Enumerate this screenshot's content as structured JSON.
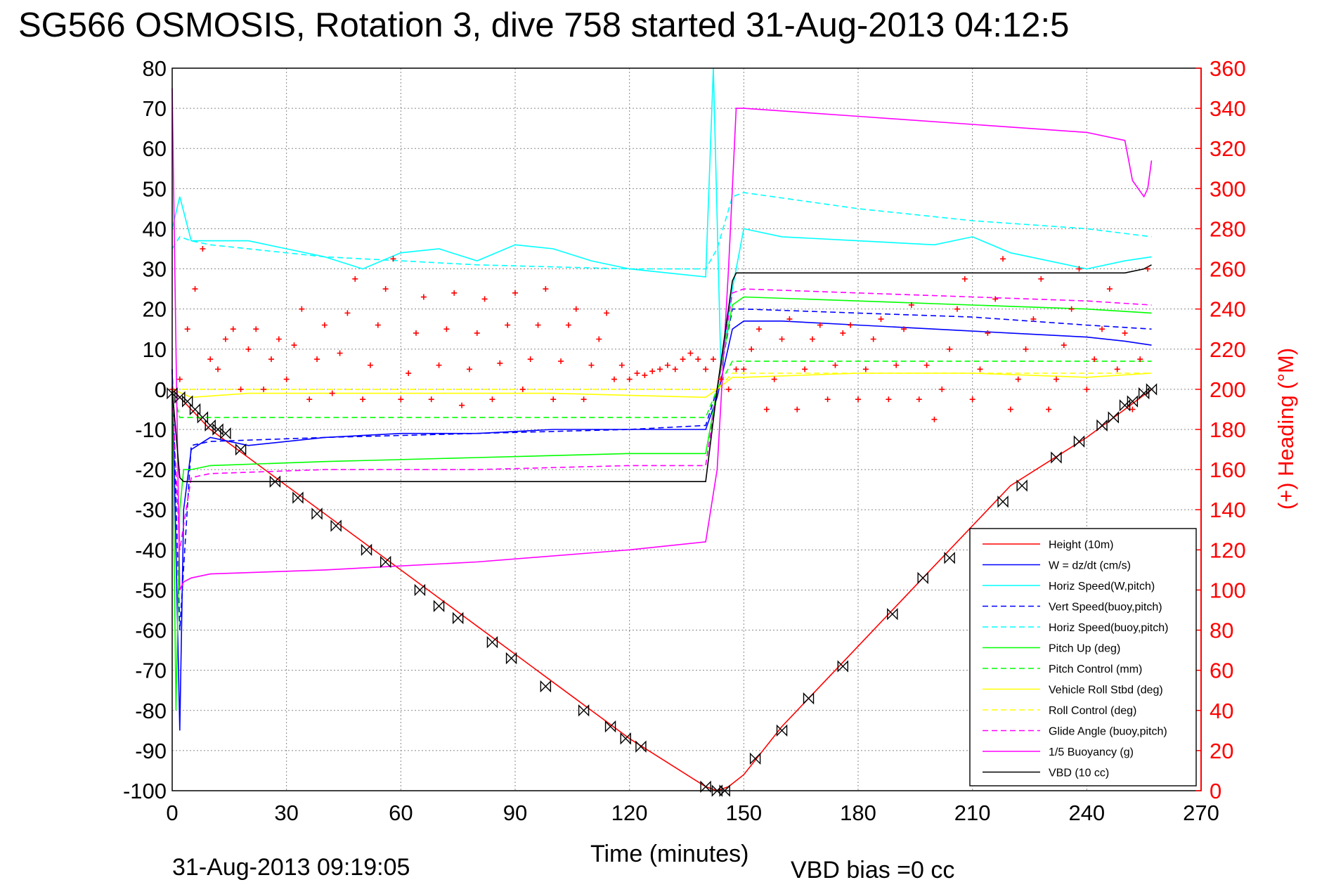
{
  "title": "SG566 OSMOSIS, Rotation 3, dive 758 started 31-Aug-2013 04:12:5",
  "footer": {
    "timestamp": "31-Aug-2013 09:19:05",
    "vbd_bias": "VBD bias =0 cc"
  },
  "colors": {
    "height": "#ff0000",
    "w": "#0000ff",
    "horiz_speed": "#00ffff",
    "pitch": "#00ff00",
    "roll": "#ffff00",
    "glide": "#ff00ff",
    "buoyancy": "#ff00ff",
    "vbd": "#000000",
    "heading": "#ff0000",
    "markers": "#000000"
  },
  "chart_data": {
    "type": "line",
    "xlabel": "Time (minutes)",
    "ylabel_right": "(+) Heading (°M)",
    "xlim": [
      0,
      270
    ],
    "ylim": [
      -100,
      80
    ],
    "ylim_right": [
      0,
      360
    ],
    "xticks": [
      0,
      30,
      60,
      90,
      120,
      150,
      180,
      210,
      240,
      270
    ],
    "yticks": [
      80,
      70,
      60,
      50,
      40,
      30,
      20,
      10,
      0,
      -10,
      -20,
      -30,
      -40,
      -50,
      -60,
      -70,
      -80,
      -90,
      -100
    ],
    "yticks_right": [
      360,
      340,
      320,
      300,
      280,
      260,
      240,
      220,
      200,
      180,
      160,
      140,
      120,
      100,
      80,
      60,
      40,
      20,
      0
    ],
    "grid": true,
    "legend_position": "bottom-right",
    "series": [
      {
        "name": "Height (10m)",
        "key": "height",
        "style": "solid",
        "x": [
          0,
          2,
          5,
          10,
          20,
          40,
          60,
          80,
          100,
          120,
          140,
          143,
          146,
          150,
          160,
          180,
          200,
          220,
          240,
          250,
          257
        ],
        "y": [
          0,
          -2,
          -5,
          -10,
          -17,
          -31,
          -45,
          -59,
          -73,
          -87,
          -99,
          -100,
          -99,
          -96,
          -84,
          -64,
          -44,
          -24,
          -12,
          -5,
          0
        ]
      },
      {
        "name": "W = dz/dt (cm/s)",
        "key": "w",
        "style": "solid",
        "x": [
          0,
          1,
          2,
          3,
          5,
          10,
          20,
          40,
          60,
          80,
          100,
          120,
          140,
          143,
          147,
          150,
          160,
          180,
          200,
          220,
          240,
          250,
          257
        ],
        "y": [
          5,
          -40,
          -85,
          -30,
          -15,
          -12,
          -14,
          -12,
          -11,
          -11,
          -10,
          -10,
          -10,
          -2,
          15,
          17,
          17,
          16,
          15,
          14,
          13,
          12,
          11
        ]
      },
      {
        "name": "Horiz Speed(W,pitch)",
        "key": "horiz_speed",
        "style": "solid",
        "x": [
          0,
          2,
          5,
          10,
          20,
          30,
          40,
          50,
          60,
          70,
          80,
          90,
          100,
          110,
          120,
          130,
          140,
          142,
          144,
          147,
          150,
          160,
          180,
          200,
          210,
          220,
          240,
          250,
          257
        ],
        "y": [
          40,
          48,
          37,
          37,
          37,
          35,
          33,
          30,
          34,
          35,
          32,
          36,
          35,
          32,
          30,
          29,
          28,
          80,
          5,
          25,
          40,
          38,
          37,
          36,
          38,
          34,
          30,
          32,
          33
        ]
      },
      {
        "name": "Vert Speed(buoy,pitch)",
        "key": "vert_speed",
        "style": "dashed",
        "x": [
          0,
          2,
          5,
          10,
          40,
          80,
          120,
          140,
          143,
          147,
          150,
          180,
          210,
          240,
          257
        ],
        "y": [
          5,
          -60,
          -14,
          -13,
          -12,
          -11,
          -10,
          -9,
          0,
          20,
          20,
          19,
          18,
          16,
          15
        ]
      },
      {
        "name": "Horiz Speed(buoy,pitch)",
        "key": "horiz_speed_buoy",
        "style": "dashed",
        "x": [
          0,
          2,
          5,
          10,
          40,
          80,
          120,
          140,
          143,
          147,
          150,
          180,
          210,
          240,
          257
        ],
        "y": [
          35,
          38,
          37,
          36,
          33,
          31,
          30,
          30,
          35,
          48,
          49,
          45,
          42,
          40,
          38
        ]
      },
      {
        "name": "Pitch Up (deg)",
        "key": "pitch",
        "style": "solid",
        "x": [
          0,
          1,
          2,
          3,
          5,
          10,
          40,
          80,
          120,
          140,
          143,
          147,
          150,
          180,
          210,
          240,
          257
        ],
        "y": [
          0,
          -80,
          -30,
          -20,
          -20,
          -19,
          -18,
          -17,
          -16,
          -16,
          0,
          21,
          23,
          22,
          21,
          20,
          19
        ]
      },
      {
        "name": "Pitch Control (mm)",
        "key": "pitch_control",
        "style": "dashed",
        "x": [
          0,
          2,
          5,
          140,
          143,
          147,
          257
        ],
        "y": [
          0,
          -7,
          -7,
          -7,
          0,
          7,
          7
        ]
      },
      {
        "name": "Vehicle Roll Stbd (deg)",
        "key": "roll",
        "style": "solid",
        "x": [
          0,
          5,
          20,
          60,
          100,
          140,
          143,
          147,
          150,
          180,
          210,
          240,
          257
        ],
        "y": [
          0,
          -2,
          -1,
          -1,
          -1,
          -2,
          0,
          3,
          3,
          4,
          4,
          3,
          4
        ]
      },
      {
        "name": "Roll Control (deg)",
        "key": "roll_control",
        "style": "dashed",
        "x": [
          0,
          5,
          140,
          143,
          147,
          257
        ],
        "y": [
          0,
          0,
          0,
          0,
          4,
          4
        ]
      },
      {
        "name": "Glide Angle (buoy,pitch)",
        "key": "glide",
        "style": "dashed",
        "x": [
          0,
          2,
          5,
          10,
          40,
          80,
          120,
          140,
          143,
          147,
          150,
          180,
          210,
          240,
          257
        ],
        "y": [
          0,
          -40,
          -22,
          -21,
          -20,
          -20,
          -19,
          -19,
          0,
          24,
          25,
          24,
          23,
          22,
          21
        ]
      },
      {
        "name": "1/5 Buoyancy (g)",
        "key": "buoyancy",
        "style": "solid",
        "x": [
          0,
          1,
          2,
          3,
          5,
          10,
          40,
          80,
          120,
          140,
          143,
          146,
          148,
          150,
          180,
          210,
          240,
          250,
          252,
          255,
          256,
          257
        ],
        "y": [
          75,
          10,
          -50,
          -48,
          -47,
          -46,
          -45,
          -43,
          -40,
          -38,
          -20,
          30,
          70,
          70,
          68,
          66,
          64,
          62,
          52,
          48,
          50,
          57
        ]
      },
      {
        "name": "VBD (10 cc)",
        "key": "vbd",
        "style": "solid",
        "x": [
          0,
          2,
          3,
          140,
          143,
          147,
          148,
          150,
          200,
          250,
          255,
          257
        ],
        "y": [
          0,
          -22,
          -23,
          -23,
          0,
          27,
          29,
          29,
          29,
          29,
          30,
          31
        ]
      }
    ],
    "heading_series": {
      "name": "(+) Heading (°M)",
      "axis": "right",
      "x": [
        0,
        2,
        4,
        6,
        8,
        10,
        12,
        14,
        16,
        18,
        20,
        22,
        24,
        26,
        28,
        30,
        32,
        34,
        36,
        38,
        40,
        42,
        44,
        46,
        48,
        50,
        52,
        54,
        56,
        58,
        60,
        62,
        64,
        66,
        68,
        70,
        72,
        74,
        76,
        78,
        80,
        82,
        84,
        86,
        88,
        90,
        92,
        94,
        96,
        98,
        100,
        102,
        104,
        106,
        108,
        110,
        112,
        114,
        116,
        118,
        120,
        122,
        124,
        126,
        128,
        130,
        132,
        134,
        136,
        138,
        140,
        142,
        144,
        146,
        148,
        150,
        152,
        154,
        156,
        158,
        160,
        162,
        164,
        166,
        168,
        170,
        172,
        174,
        176,
        178,
        180,
        182,
        184,
        186,
        188,
        190,
        192,
        194,
        196,
        198,
        200,
        202,
        204,
        206,
        208,
        210,
        212,
        214,
        216,
        218,
        220,
        222,
        224,
        226,
        228,
        230,
        232,
        234,
        236,
        238,
        240,
        242,
        244,
        246,
        248,
        250,
        252,
        254,
        256
      ],
      "y": [
        200,
        205,
        230,
        250,
        270,
        215,
        210,
        225,
        230,
        200,
        220,
        230,
        200,
        215,
        225,
        205,
        222,
        240,
        195,
        215,
        232,
        198,
        218,
        238,
        255,
        195,
        212,
        232,
        250,
        265,
        195,
        208,
        228,
        246,
        195,
        212,
        230,
        248,
        192,
        210,
        228,
        245,
        195,
        213,
        232,
        248,
        200,
        215,
        232,
        250,
        195,
        214,
        232,
        240,
        195,
        212,
        225,
        238,
        205,
        212,
        205,
        208,
        207,
        209,
        210,
        212,
        210,
        215,
        218,
        215,
        210,
        215,
        205,
        200,
        210,
        210,
        220,
        230,
        190,
        205,
        225,
        235,
        190,
        210,
        225,
        232,
        195,
        212,
        228,
        232,
        195,
        210,
        225,
        235,
        195,
        212,
        230,
        242,
        195,
        212,
        185,
        200,
        220,
        240,
        255,
        195,
        210,
        228,
        245,
        265,
        190,
        205,
        220,
        235,
        255,
        190,
        205,
        222,
        240,
        260,
        200,
        215,
        230,
        250,
        210,
        228,
        190,
        215,
        260
      ]
    },
    "marker_series": {
      "name": "markers",
      "x": [
        0,
        2,
        4,
        6,
        8,
        10,
        12,
        14,
        18,
        27,
        33,
        38,
        43,
        51,
        56,
        65,
        70,
        75,
        84,
        89,
        98,
        108,
        115,
        119,
        123,
        140,
        143,
        145,
        153,
        160,
        167,
        176,
        189,
        197,
        204,
        218,
        223,
        232,
        238,
        244,
        247,
        250,
        252,
        255,
        257
      ],
      "y": [
        -1,
        -2,
        -3,
        -5,
        -7,
        -9,
        -10,
        -11,
        -15,
        -23,
        -27,
        -31,
        -34,
        -40,
        -43,
        -50,
        -54,
        -57,
        -63,
        -67,
        -74,
        -80,
        -84,
        -87,
        -89,
        -99,
        -100,
        -100,
        -92,
        -85,
        -77,
        -69,
        -56,
        -47,
        -42,
        -28,
        -24,
        -17,
        -13,
        -9,
        -7,
        -4,
        -3,
        -1,
        0
      ]
    }
  }
}
